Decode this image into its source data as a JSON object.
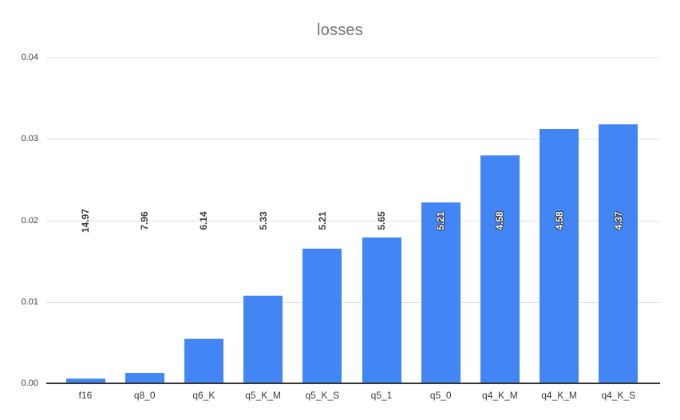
{
  "chart_data": {
    "type": "bar",
    "title": "losses",
    "categories": [
      "f16",
      "q8_0",
      "q6_K",
      "q5_K_M",
      "q5_K_S",
      "q5_1",
      "q5_0",
      "q4_K_M",
      "q4_K_M",
      "q4_K_S"
    ],
    "values": [
      0.0006,
      0.0013,
      0.0055,
      0.0108,
      0.0165,
      0.0179,
      0.0222,
      0.028,
      0.0312,
      0.0318
    ],
    "annotations": [
      "14.97",
      "7.96",
      "6.14",
      "5.33",
      "5.21",
      "5.65",
      "5.21",
      "4.58",
      "4.58",
      "4.37"
    ],
    "annotations_on_bar": [
      false,
      false,
      false,
      false,
      false,
      false,
      true,
      true,
      true,
      true
    ],
    "xlabel": "",
    "ylabel": "",
    "ylim": [
      0,
      0.04
    ],
    "y_tick_labels": [
      "0.00",
      "0.01",
      "0.02",
      "0.03",
      "0.04"
    ],
    "grid": true,
    "legend_position": "none"
  },
  "colors": {
    "background": "#ffffff",
    "bar": "#4285f4",
    "title_text": "#757575",
    "tick_text": "#3c3c3c",
    "gridline": "#e3e3e3",
    "baseline": "#333333",
    "annotation_dark": "#3c3c3c",
    "annotation_light": "#ffffff"
  }
}
